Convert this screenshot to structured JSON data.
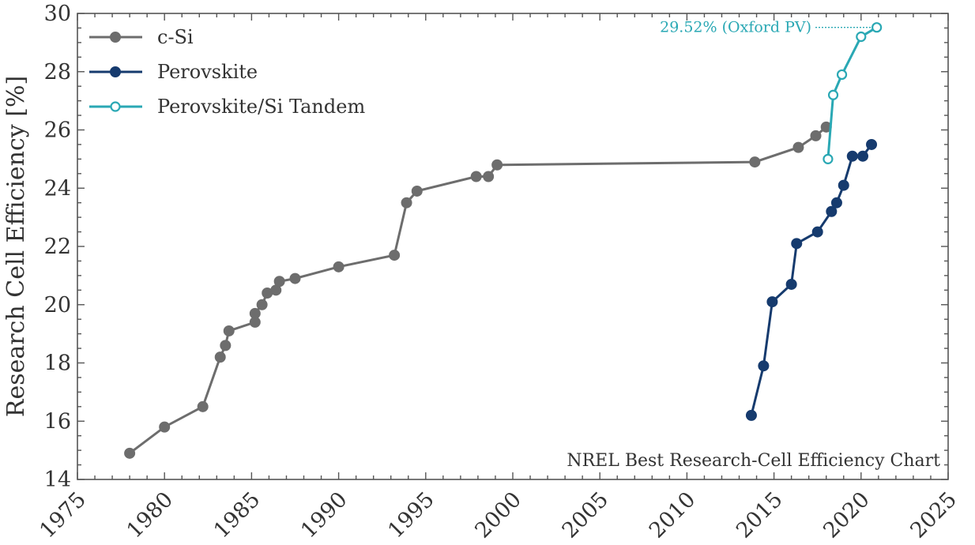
{
  "chart_data": {
    "type": "line",
    "title": "",
    "xlabel": "",
    "ylabel": "Research Cell Efficiency [%]",
    "xlim": [
      1975,
      2025
    ],
    "ylim": [
      14,
      30
    ],
    "xticks": [
      "1975",
      "1980",
      "1985",
      "1990",
      "1995",
      "2000",
      "2005",
      "2010",
      "2015",
      "2020",
      "2025"
    ],
    "yticks": [
      "14",
      "16",
      "18",
      "20",
      "22",
      "24",
      "26",
      "28",
      "30"
    ],
    "grid": false,
    "legend_position": "top-left",
    "note": "NREL Best Research-Cell Efficiency Chart",
    "callout": {
      "text": "29.52% (Oxford PV)",
      "series": "Perovskite/Si Tandem",
      "x": 2020.9,
      "y": 29.52
    },
    "series": [
      {
        "name": "c-Si",
        "color": "#6d6d6d",
        "marker": "filled",
        "points": [
          [
            1978.0,
            14.9
          ],
          [
            1980.0,
            15.8
          ],
          [
            1982.2,
            16.5
          ],
          [
            1983.2,
            18.2
          ],
          [
            1983.5,
            18.6
          ],
          [
            1983.7,
            19.1
          ],
          [
            1985.2,
            19.4
          ],
          [
            1985.2,
            19.7
          ],
          [
            1985.6,
            20.0
          ],
          [
            1985.9,
            20.4
          ],
          [
            1986.4,
            20.5
          ],
          [
            1986.6,
            20.8
          ],
          [
            1987.5,
            20.9
          ],
          [
            1990.0,
            21.3
          ],
          [
            1993.2,
            21.7
          ],
          [
            1993.9,
            23.5
          ],
          [
            1994.5,
            23.9
          ],
          [
            1997.9,
            24.4
          ],
          [
            1998.6,
            24.4
          ],
          [
            1999.1,
            24.8
          ],
          [
            2013.9,
            24.9
          ],
          [
            2016.4,
            25.4
          ],
          [
            2017.4,
            25.8
          ],
          [
            2018.0,
            26.1
          ]
        ]
      },
      {
        "name": "Perovskite",
        "color": "#163b6e",
        "marker": "filled",
        "points": [
          [
            2013.7,
            16.2
          ],
          [
            2014.4,
            17.9
          ],
          [
            2014.9,
            20.1
          ],
          [
            2016.0,
            20.7
          ],
          [
            2016.3,
            22.1
          ],
          [
            2017.5,
            22.5
          ],
          [
            2018.3,
            23.2
          ],
          [
            2018.6,
            23.5
          ],
          [
            2019.0,
            24.1
          ],
          [
            2019.5,
            25.1
          ],
          [
            2020.1,
            25.1
          ],
          [
            2020.6,
            25.5
          ]
        ]
      },
      {
        "name": "Perovskite/Si Tandem",
        "color": "#2aa8b4",
        "marker": "hollow",
        "points": [
          [
            2018.1,
            25.0
          ],
          [
            2018.4,
            27.2
          ],
          [
            2018.9,
            27.9
          ],
          [
            2020.0,
            29.2
          ],
          [
            2020.9,
            29.52
          ]
        ]
      }
    ]
  }
}
